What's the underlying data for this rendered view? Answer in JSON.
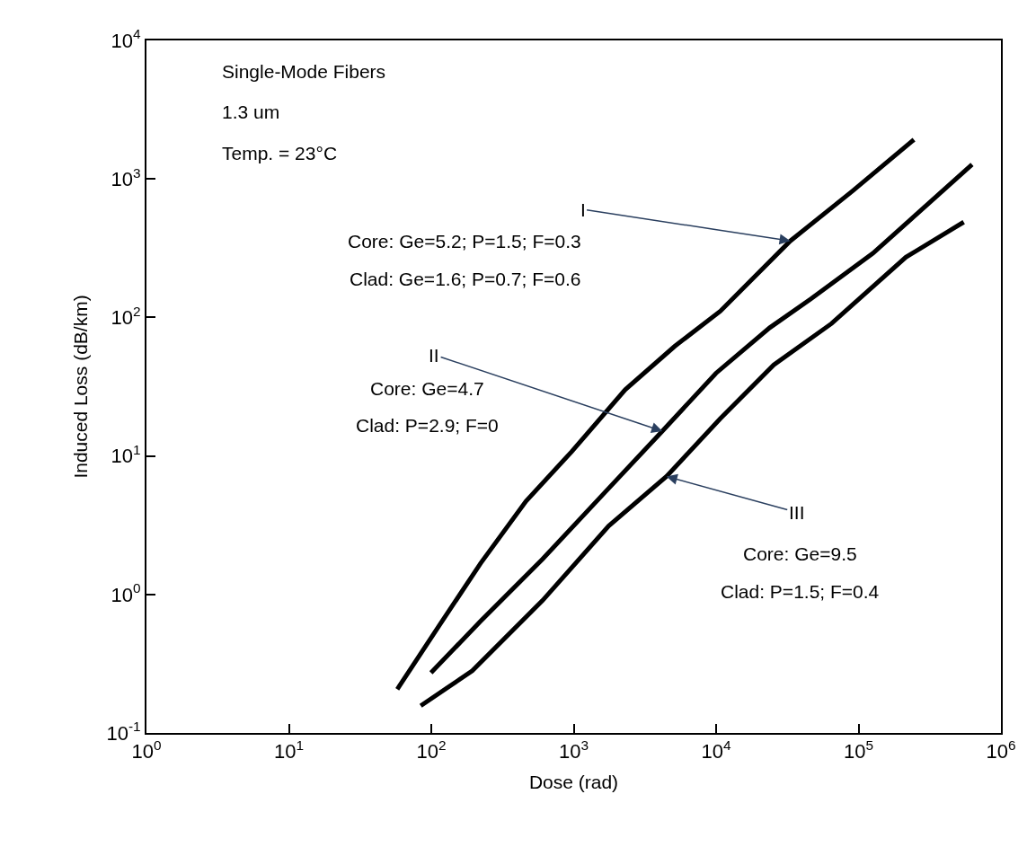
{
  "chart_data": {
    "type": "line",
    "xlabel": "Dose (rad)",
    "ylabel": "Induced Loss (dB/km)",
    "log": "xy",
    "grid": false,
    "marker": "none",
    "line_style": "solid",
    "xlim": [
      1,
      1000000
    ],
    "ylim": [
      0.1,
      10000
    ],
    "xticks": [
      {
        "value": 1,
        "label": "10$^{0}$"
      },
      {
        "value": 10,
        "label": "10$^{1}$"
      },
      {
        "value": 100,
        "label": "10$^{2}$"
      },
      {
        "value": 1000,
        "label": "10$^{3}$"
      },
      {
        "value": 10000,
        "label": "10$^{4}$"
      },
      {
        "value": 100000,
        "label": "10$^{5}$"
      },
      {
        "value": 1000000,
        "label": "10$^{6}$"
      }
    ],
    "yticks": [
      {
        "value": 0.1,
        "label": "10$^{-1}$"
      },
      {
        "value": 1,
        "label": "10$^{0}$"
      },
      {
        "value": 10,
        "label": "10$^{1}$"
      },
      {
        "value": 100,
        "label": "10$^{2}$"
      },
      {
        "value": 1000,
        "label": "10$^{3}$"
      },
      {
        "value": 10000,
        "label": "10$^{4}$"
      }
    ],
    "series": [
      {
        "color": "#000000",
        "x": [
          57.7,
          114,
          222,
          462,
          964,
          2300,
          5120,
          10700,
          33200,
          90400,
          245000
        ],
        "values": [
          0.207,
          0.598,
          1.68,
          4.71,
          10.7,
          30.1,
          61.9,
          111,
          357,
          815,
          1920
        ]
      },
      {
        "color": "#000000",
        "x": [
          99.5,
          222,
          604,
          1640,
          4190,
          9980,
          23800,
          46300,
          126000,
          627000
        ],
        "values": [
          0.272,
          0.641,
          1.8,
          5.4,
          15.1,
          39.6,
          84.3,
          136,
          290,
          1270
        ]
      },
      {
        "color": "#000000",
        "x": [
          84.3,
          194,
          604,
          1760,
          4480,
          10700,
          25400,
          64700,
          215000,
          548000
        ],
        "values": [
          0.157,
          0.281,
          0.904,
          3.12,
          7.11,
          18.6,
          45.5,
          90.4,
          272,
          488
        ]
      }
    ],
    "annotations": [
      "Single-Mode Fibers",
      "1.3 um",
      "Temp. = 23°C",
      {
        "text": "I",
        "x": 33200,
        "y": 357
      },
      "Core: Ge=5.2; P=1.5; F=0.3",
      "Clad: Ge=1.6; P=0.7; F=0.6",
      {
        "text": "II",
        "x": 4190,
        "y": 15.1
      },
      "Core: Ge=4.7",
      "Clad: P=2.9; F=0",
      {
        "text": "III",
        "x": 4480,
        "y": 7.11
      },
      "Core: Ge=9.5",
      "Clad: P=1.5; F=0.4"
    ]
  }
}
